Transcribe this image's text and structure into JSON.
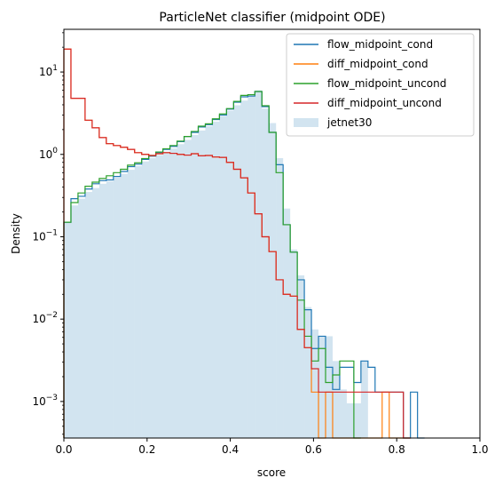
{
  "chart_data": {
    "type": "histogram",
    "title": "ParticleNet classifier (midpoint ODE)",
    "xlabel": "score",
    "ylabel": "Density",
    "xlim": [
      0.0,
      1.0
    ],
    "ylim": [
      0.00036,
      33
    ],
    "yscale": "log",
    "xticks": [
      {
        "value": 0.0,
        "label": "0.0"
      },
      {
        "value": 0.2,
        "label": "0.2"
      },
      {
        "value": 0.4,
        "label": "0.4"
      },
      {
        "value": 0.6,
        "label": "0.6"
      },
      {
        "value": 0.8,
        "label": "0.8"
      },
      {
        "value": 1.0,
        "label": "1.0"
      }
    ],
    "yticks": [
      {
        "value": 0.001,
        "base": "10",
        "exp": "−3"
      },
      {
        "value": 0.01,
        "base": "10",
        "exp": "−2"
      },
      {
        "value": 0.1,
        "base": "10",
        "exp": "−1"
      },
      {
        "value": 1,
        "base": "10",
        "exp": "0"
      },
      {
        "value": 10,
        "base": "10",
        "exp": "1"
      }
    ],
    "grid": false,
    "legend_position": "top-right",
    "bin_width": 0.017,
    "series": [
      {
        "name": "flow_midpoint_cond",
        "style": "step",
        "color": "#1f77b4",
        "bins": [
          [
            0.0,
            0.15
          ],
          [
            0.017,
            0.29
          ],
          [
            0.034,
            0.31
          ],
          [
            0.051,
            0.38
          ],
          [
            0.068,
            0.44
          ],
          [
            0.085,
            0.48
          ],
          [
            0.102,
            0.49
          ],
          [
            0.119,
            0.54
          ],
          [
            0.136,
            0.62
          ],
          [
            0.153,
            0.71
          ],
          [
            0.17,
            0.76
          ],
          [
            0.187,
            0.87
          ],
          [
            0.204,
            0.95
          ],
          [
            0.221,
            1.05
          ],
          [
            0.238,
            1.15
          ],
          [
            0.255,
            1.25
          ],
          [
            0.272,
            1.43
          ],
          [
            0.289,
            1.65
          ],
          [
            0.306,
            1.85
          ],
          [
            0.323,
            2.15
          ],
          [
            0.34,
            2.3
          ],
          [
            0.357,
            2.65
          ],
          [
            0.374,
            3.0
          ],
          [
            0.391,
            3.55
          ],
          [
            0.408,
            4.3
          ],
          [
            0.425,
            5.0
          ],
          [
            0.442,
            5.1
          ],
          [
            0.459,
            5.8
          ],
          [
            0.476,
            3.8
          ],
          [
            0.493,
            1.85
          ],
          [
            0.51,
            0.75
          ],
          [
            0.527,
            0.14
          ],
          [
            0.544,
            0.065
          ],
          [
            0.561,
            0.03
          ],
          [
            0.578,
            0.013
          ],
          [
            0.595,
            0.0044
          ],
          [
            0.612,
            0.0062
          ],
          [
            0.629,
            0.0026
          ],
          [
            0.646,
            0.0014
          ],
          [
            0.663,
            0.0026
          ],
          [
            0.68,
            0.0026
          ],
          [
            0.697,
            0.0017
          ],
          [
            0.714,
            0.0031
          ],
          [
            0.731,
            0.0026
          ],
          [
            0.748,
            0.0013
          ],
          [
            0.765,
            0.0013
          ],
          [
            0.782,
            0.0013
          ],
          [
            0.799,
            0.0013
          ],
          [
            0.816,
            0.00036
          ],
          [
            0.833,
            0.0013
          ],
          [
            0.85,
            0.00036
          ]
        ]
      },
      {
        "name": "diff_midpoint_cond",
        "style": "step",
        "color": "#ff7f0e",
        "bins": [
          [
            0.0,
            19
          ],
          [
            0.017,
            4.8
          ],
          [
            0.034,
            4.8
          ],
          [
            0.051,
            2.6
          ],
          [
            0.068,
            2.1
          ],
          [
            0.085,
            1.6
          ],
          [
            0.102,
            1.35
          ],
          [
            0.119,
            1.28
          ],
          [
            0.136,
            1.22
          ],
          [
            0.153,
            1.15
          ],
          [
            0.17,
            1.05
          ],
          [
            0.187,
            1.0
          ],
          [
            0.204,
            0.97
          ],
          [
            0.221,
            1.02
          ],
          [
            0.238,
            1.05
          ],
          [
            0.255,
            1.03
          ],
          [
            0.272,
            1.0
          ],
          [
            0.289,
            0.98
          ],
          [
            0.306,
            1.02
          ],
          [
            0.323,
            0.96
          ],
          [
            0.34,
            0.97
          ],
          [
            0.357,
            0.93
          ],
          [
            0.374,
            0.92
          ],
          [
            0.391,
            0.8
          ],
          [
            0.408,
            0.66
          ],
          [
            0.425,
            0.52
          ],
          [
            0.442,
            0.34
          ],
          [
            0.459,
            0.19
          ],
          [
            0.476,
            0.1
          ],
          [
            0.493,
            0.066
          ],
          [
            0.51,
            0.03
          ],
          [
            0.527,
            0.02
          ],
          [
            0.544,
            0.019
          ],
          [
            0.561,
            0.0075
          ],
          [
            0.578,
            0.0045
          ],
          [
            0.595,
            0.0013
          ],
          [
            0.612,
            0.00036
          ],
          [
            0.629,
            0.0013
          ],
          [
            0.646,
            0.00036
          ],
          [
            0.663,
            0.00036
          ],
          [
            0.68,
            0.00036
          ],
          [
            0.697,
            0.00036
          ],
          [
            0.714,
            0.00036
          ],
          [
            0.731,
            0.00036
          ],
          [
            0.748,
            0.00036
          ],
          [
            0.765,
            0.0013
          ],
          [
            0.782,
            0.00036
          ],
          [
            0.799,
            0.00036
          ],
          [
            0.816,
            0.00036
          ]
        ]
      },
      {
        "name": "flow_midpoint_uncond",
        "style": "step",
        "color": "#2ca02c",
        "bins": [
          [
            0.0,
            0.15
          ],
          [
            0.017,
            0.26
          ],
          [
            0.034,
            0.34
          ],
          [
            0.051,
            0.41
          ],
          [
            0.068,
            0.46
          ],
          [
            0.085,
            0.51
          ],
          [
            0.102,
            0.55
          ],
          [
            0.119,
            0.6
          ],
          [
            0.136,
            0.66
          ],
          [
            0.153,
            0.74
          ],
          [
            0.17,
            0.79
          ],
          [
            0.187,
            0.89
          ],
          [
            0.204,
            0.97
          ],
          [
            0.221,
            1.07
          ],
          [
            0.238,
            1.17
          ],
          [
            0.255,
            1.28
          ],
          [
            0.272,
            1.45
          ],
          [
            0.289,
            1.65
          ],
          [
            0.306,
            1.9
          ],
          [
            0.323,
            2.2
          ],
          [
            0.34,
            2.35
          ],
          [
            0.357,
            2.7
          ],
          [
            0.374,
            3.1
          ],
          [
            0.391,
            3.6
          ],
          [
            0.408,
            4.4
          ],
          [
            0.425,
            5.2
          ],
          [
            0.442,
            5.3
          ],
          [
            0.459,
            5.8
          ],
          [
            0.476,
            3.9
          ],
          [
            0.493,
            1.85
          ],
          [
            0.51,
            0.6
          ],
          [
            0.527,
            0.14
          ],
          [
            0.544,
            0.065
          ],
          [
            0.561,
            0.017
          ],
          [
            0.578,
            0.0062
          ],
          [
            0.595,
            0.0031
          ],
          [
            0.612,
            0.0044
          ],
          [
            0.629,
            0.0017
          ],
          [
            0.646,
            0.0021
          ],
          [
            0.663,
            0.0031
          ],
          [
            0.68,
            0.0031
          ],
          [
            0.697,
            0.00036
          ]
        ]
      },
      {
        "name": "diff_midpoint_uncond",
        "style": "step",
        "color": "#d62728",
        "bins": [
          [
            0.0,
            19
          ],
          [
            0.017,
            4.8
          ],
          [
            0.034,
            4.8
          ],
          [
            0.051,
            2.6
          ],
          [
            0.068,
            2.1
          ],
          [
            0.085,
            1.6
          ],
          [
            0.102,
            1.35
          ],
          [
            0.119,
            1.28
          ],
          [
            0.136,
            1.22
          ],
          [
            0.153,
            1.15
          ],
          [
            0.17,
            1.05
          ],
          [
            0.187,
            1.0
          ],
          [
            0.204,
            0.97
          ],
          [
            0.221,
            1.02
          ],
          [
            0.238,
            1.05
          ],
          [
            0.255,
            1.03
          ],
          [
            0.272,
            1.0
          ],
          [
            0.289,
            0.98
          ],
          [
            0.306,
            1.02
          ],
          [
            0.323,
            0.96
          ],
          [
            0.34,
            0.97
          ],
          [
            0.357,
            0.93
          ],
          [
            0.374,
            0.92
          ],
          [
            0.391,
            0.8
          ],
          [
            0.408,
            0.66
          ],
          [
            0.425,
            0.52
          ],
          [
            0.442,
            0.34
          ],
          [
            0.459,
            0.19
          ],
          [
            0.476,
            0.1
          ],
          [
            0.493,
            0.066
          ],
          [
            0.51,
            0.03
          ],
          [
            0.527,
            0.02
          ],
          [
            0.544,
            0.019
          ],
          [
            0.561,
            0.0075
          ],
          [
            0.578,
            0.0045
          ],
          [
            0.595,
            0.0025
          ],
          [
            0.612,
            0.0013
          ],
          [
            0.629,
            0.0013
          ],
          [
            0.646,
            0.0013
          ],
          [
            0.663,
            0.0013
          ],
          [
            0.68,
            0.0013
          ],
          [
            0.697,
            0.0013
          ],
          [
            0.714,
            0.0013
          ],
          [
            0.731,
            0.0013
          ],
          [
            0.748,
            0.0013
          ],
          [
            0.765,
            0.0013
          ],
          [
            0.782,
            0.0013
          ],
          [
            0.799,
            0.0013
          ],
          [
            0.816,
            0.00036
          ]
        ]
      },
      {
        "name": "jetnet30",
        "style": "filled",
        "color": "#1f77b4",
        "opacity": 0.2,
        "bins": [
          [
            0.0,
            0.15
          ],
          [
            0.017,
            0.24
          ],
          [
            0.034,
            0.29
          ],
          [
            0.051,
            0.35
          ],
          [
            0.068,
            0.39
          ],
          [
            0.085,
            0.44
          ],
          [
            0.102,
            0.47
          ],
          [
            0.119,
            0.53
          ],
          [
            0.136,
            0.58
          ],
          [
            0.153,
            0.65
          ],
          [
            0.17,
            0.72
          ],
          [
            0.187,
            0.82
          ],
          [
            0.204,
            0.9
          ],
          [
            0.221,
            0.98
          ],
          [
            0.238,
            1.08
          ],
          [
            0.255,
            1.18
          ],
          [
            0.272,
            1.33
          ],
          [
            0.289,
            1.5
          ],
          [
            0.306,
            1.72
          ],
          [
            0.323,
            1.95
          ],
          [
            0.34,
            2.2
          ],
          [
            0.357,
            2.5
          ],
          [
            0.374,
            2.9
          ],
          [
            0.391,
            3.4
          ],
          [
            0.408,
            3.95
          ],
          [
            0.425,
            4.5
          ],
          [
            0.442,
            5.0
          ],
          [
            0.459,
            6.0
          ],
          [
            0.476,
            3.6
          ],
          [
            0.493,
            2.4
          ],
          [
            0.51,
            0.9
          ],
          [
            0.527,
            0.22
          ],
          [
            0.544,
            0.07
          ],
          [
            0.561,
            0.034
          ],
          [
            0.578,
            0.014
          ],
          [
            0.595,
            0.0075
          ],
          [
            0.612,
            0.0062
          ],
          [
            0.629,
            0.0062
          ],
          [
            0.646,
            0.0031
          ],
          [
            0.663,
            0.0014
          ],
          [
            0.68,
            0.00095
          ],
          [
            0.697,
            0.00095
          ],
          [
            0.714,
            0.0031
          ],
          [
            0.731,
            0.00036
          ]
        ]
      }
    ]
  }
}
